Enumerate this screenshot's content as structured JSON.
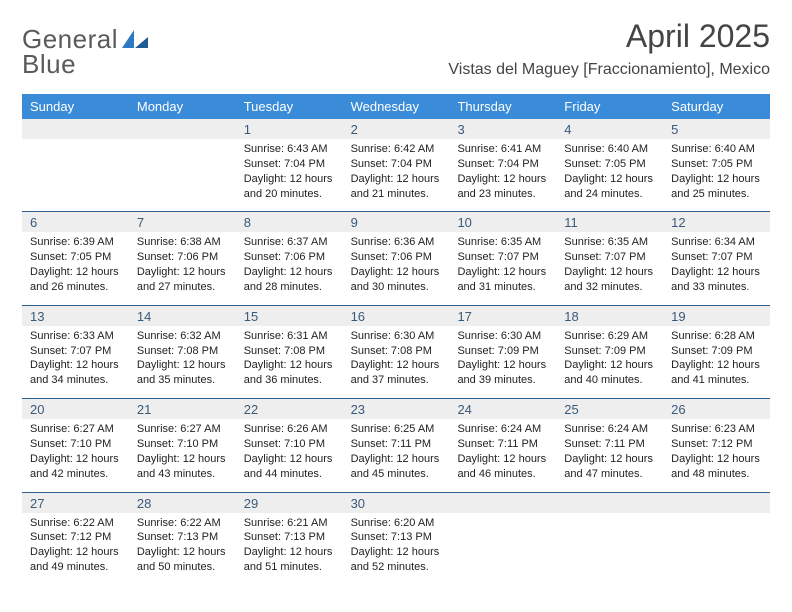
{
  "logo": {
    "word1": "General",
    "word2": "Blue"
  },
  "title": "April 2025",
  "subtitle": "Vistas del Maguey [Fraccionamiento], Mexico",
  "colors": {
    "header_bg": "#3a8bd8",
    "header_text": "#ffffff",
    "daynum_bg": "#eeeeee",
    "daynum_text": "#3a5a7a",
    "row_divider": "#2c5f8d",
    "logo_gray": "#5a5a5a",
    "logo_blue": "#2f78c2",
    "title_color": "#444444"
  },
  "weekdays": [
    "Sunday",
    "Monday",
    "Tuesday",
    "Wednesday",
    "Thursday",
    "Friday",
    "Saturday"
  ],
  "weeks": [
    {
      "nums": [
        "",
        "",
        "1",
        "2",
        "3",
        "4",
        "5"
      ],
      "cells": [
        {
          "sunrise": "",
          "sunset": "",
          "daylight": ""
        },
        {
          "sunrise": "",
          "sunset": "",
          "daylight": ""
        },
        {
          "sunrise": "Sunrise: 6:43 AM",
          "sunset": "Sunset: 7:04 PM",
          "daylight": "Daylight: 12 hours and 20 minutes."
        },
        {
          "sunrise": "Sunrise: 6:42 AM",
          "sunset": "Sunset: 7:04 PM",
          "daylight": "Daylight: 12 hours and 21 minutes."
        },
        {
          "sunrise": "Sunrise: 6:41 AM",
          "sunset": "Sunset: 7:04 PM",
          "daylight": "Daylight: 12 hours and 23 minutes."
        },
        {
          "sunrise": "Sunrise: 6:40 AM",
          "sunset": "Sunset: 7:05 PM",
          "daylight": "Daylight: 12 hours and 24 minutes."
        },
        {
          "sunrise": "Sunrise: 6:40 AM",
          "sunset": "Sunset: 7:05 PM",
          "daylight": "Daylight: 12 hours and 25 minutes."
        }
      ]
    },
    {
      "nums": [
        "6",
        "7",
        "8",
        "9",
        "10",
        "11",
        "12"
      ],
      "cells": [
        {
          "sunrise": "Sunrise: 6:39 AM",
          "sunset": "Sunset: 7:05 PM",
          "daylight": "Daylight: 12 hours and 26 minutes."
        },
        {
          "sunrise": "Sunrise: 6:38 AM",
          "sunset": "Sunset: 7:06 PM",
          "daylight": "Daylight: 12 hours and 27 minutes."
        },
        {
          "sunrise": "Sunrise: 6:37 AM",
          "sunset": "Sunset: 7:06 PM",
          "daylight": "Daylight: 12 hours and 28 minutes."
        },
        {
          "sunrise": "Sunrise: 6:36 AM",
          "sunset": "Sunset: 7:06 PM",
          "daylight": "Daylight: 12 hours and 30 minutes."
        },
        {
          "sunrise": "Sunrise: 6:35 AM",
          "sunset": "Sunset: 7:07 PM",
          "daylight": "Daylight: 12 hours and 31 minutes."
        },
        {
          "sunrise": "Sunrise: 6:35 AM",
          "sunset": "Sunset: 7:07 PM",
          "daylight": "Daylight: 12 hours and 32 minutes."
        },
        {
          "sunrise": "Sunrise: 6:34 AM",
          "sunset": "Sunset: 7:07 PM",
          "daylight": "Daylight: 12 hours and 33 minutes."
        }
      ]
    },
    {
      "nums": [
        "13",
        "14",
        "15",
        "16",
        "17",
        "18",
        "19"
      ],
      "cells": [
        {
          "sunrise": "Sunrise: 6:33 AM",
          "sunset": "Sunset: 7:07 PM",
          "daylight": "Daylight: 12 hours and 34 minutes."
        },
        {
          "sunrise": "Sunrise: 6:32 AM",
          "sunset": "Sunset: 7:08 PM",
          "daylight": "Daylight: 12 hours and 35 minutes."
        },
        {
          "sunrise": "Sunrise: 6:31 AM",
          "sunset": "Sunset: 7:08 PM",
          "daylight": "Daylight: 12 hours and 36 minutes."
        },
        {
          "sunrise": "Sunrise: 6:30 AM",
          "sunset": "Sunset: 7:08 PM",
          "daylight": "Daylight: 12 hours and 37 minutes."
        },
        {
          "sunrise": "Sunrise: 6:30 AM",
          "sunset": "Sunset: 7:09 PM",
          "daylight": "Daylight: 12 hours and 39 minutes."
        },
        {
          "sunrise": "Sunrise: 6:29 AM",
          "sunset": "Sunset: 7:09 PM",
          "daylight": "Daylight: 12 hours and 40 minutes."
        },
        {
          "sunrise": "Sunrise: 6:28 AM",
          "sunset": "Sunset: 7:09 PM",
          "daylight": "Daylight: 12 hours and 41 minutes."
        }
      ]
    },
    {
      "nums": [
        "20",
        "21",
        "22",
        "23",
        "24",
        "25",
        "26"
      ],
      "cells": [
        {
          "sunrise": "Sunrise: 6:27 AM",
          "sunset": "Sunset: 7:10 PM",
          "daylight": "Daylight: 12 hours and 42 minutes."
        },
        {
          "sunrise": "Sunrise: 6:27 AM",
          "sunset": "Sunset: 7:10 PM",
          "daylight": "Daylight: 12 hours and 43 minutes."
        },
        {
          "sunrise": "Sunrise: 6:26 AM",
          "sunset": "Sunset: 7:10 PM",
          "daylight": "Daylight: 12 hours and 44 minutes."
        },
        {
          "sunrise": "Sunrise: 6:25 AM",
          "sunset": "Sunset: 7:11 PM",
          "daylight": "Daylight: 12 hours and 45 minutes."
        },
        {
          "sunrise": "Sunrise: 6:24 AM",
          "sunset": "Sunset: 7:11 PM",
          "daylight": "Daylight: 12 hours and 46 minutes."
        },
        {
          "sunrise": "Sunrise: 6:24 AM",
          "sunset": "Sunset: 7:11 PM",
          "daylight": "Daylight: 12 hours and 47 minutes."
        },
        {
          "sunrise": "Sunrise: 6:23 AM",
          "sunset": "Sunset: 7:12 PM",
          "daylight": "Daylight: 12 hours and 48 minutes."
        }
      ]
    },
    {
      "nums": [
        "27",
        "28",
        "29",
        "30",
        "",
        "",
        ""
      ],
      "cells": [
        {
          "sunrise": "Sunrise: 6:22 AM",
          "sunset": "Sunset: 7:12 PM",
          "daylight": "Daylight: 12 hours and 49 minutes."
        },
        {
          "sunrise": "Sunrise: 6:22 AM",
          "sunset": "Sunset: 7:13 PM",
          "daylight": "Daylight: 12 hours and 50 minutes."
        },
        {
          "sunrise": "Sunrise: 6:21 AM",
          "sunset": "Sunset: 7:13 PM",
          "daylight": "Daylight: 12 hours and 51 minutes."
        },
        {
          "sunrise": "Sunrise: 6:20 AM",
          "sunset": "Sunset: 7:13 PM",
          "daylight": "Daylight: 12 hours and 52 minutes."
        },
        {
          "sunrise": "",
          "sunset": "",
          "daylight": ""
        },
        {
          "sunrise": "",
          "sunset": "",
          "daylight": ""
        },
        {
          "sunrise": "",
          "sunset": "",
          "daylight": ""
        }
      ]
    }
  ]
}
